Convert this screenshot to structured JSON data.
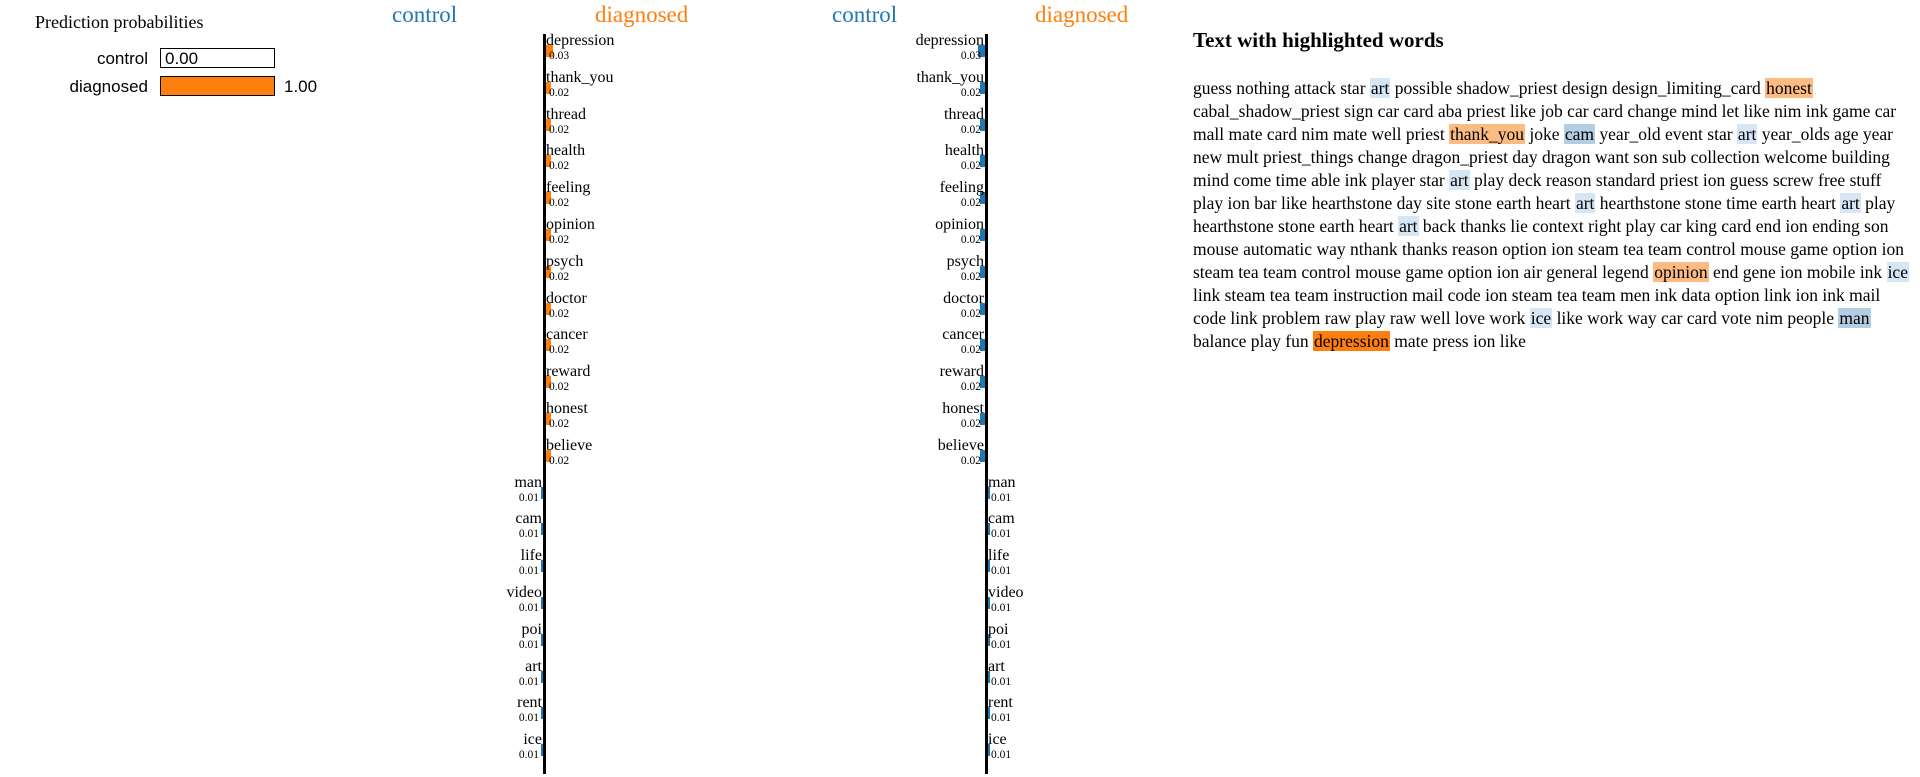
{
  "colors": {
    "control": "#1f77b4",
    "diagnosed": "#ff7f0e"
  },
  "prediction": {
    "title": "Prediction probabilities",
    "rows": [
      {
        "label": "control",
        "value": 0.0,
        "display": "0.00"
      },
      {
        "label": "diagnosed",
        "value": 1.0,
        "display": "1.00"
      }
    ]
  },
  "panels": [
    {
      "left_label": "control",
      "right_label": "diagnosed"
    },
    {
      "left_label": "control",
      "right_label": "diagnosed"
    }
  ],
  "chart_data": {
    "type": "bar",
    "title": "",
    "orientation": "horizontal",
    "series": [
      {
        "name": "diagnosed",
        "color": "#ff7f0e",
        "categories": [
          "depression",
          "thank_you",
          "thread",
          "health",
          "feeling",
          "opinion",
          "psych",
          "doctor",
          "cancer",
          "reward",
          "honest",
          "believe"
        ],
        "values": [
          0.03,
          0.02,
          0.02,
          0.02,
          0.02,
          0.02,
          0.02,
          0.02,
          0.02,
          0.02,
          0.02,
          0.02
        ],
        "labels": [
          "0.03",
          "0.02",
          "0.02",
          "0.02",
          "0.02",
          "0.02",
          "0.02",
          "0.02",
          "0.02",
          "0.02",
          "0.02",
          "0.02"
        ]
      },
      {
        "name": "control",
        "color": "#1f77b4",
        "categories": [
          "man",
          "cam",
          "life",
          "video",
          "poi",
          "art",
          "rent",
          "ice"
        ],
        "values": [
          0.01,
          0.01,
          0.01,
          0.01,
          0.01,
          0.01,
          0.01,
          0.01
        ],
        "labels": [
          "0.01",
          "0.01",
          "0.01",
          "0.01",
          "0.01",
          "0.01",
          "0.01",
          "0.01"
        ]
      }
    ]
  },
  "text_panel": {
    "title": "Text with highlighted words",
    "tokens": [
      {
        "t": "guess nothing attack star "
      },
      {
        "t": "art",
        "h": "c1"
      },
      {
        "t": " possible shadow_priest design design_limiting_card "
      },
      {
        "t": "honest",
        "h": "d2"
      },
      {
        "t": " cabal_shadow_priest sign car card aba priest like job car card change mind let like nim ink game car mall mate card nim mate well priest "
      },
      {
        "t": "thank_you",
        "h": "d2"
      },
      {
        "t": " joke "
      },
      {
        "t": "cam",
        "h": "c2"
      },
      {
        "t": " year_old event star "
      },
      {
        "t": "art",
        "h": "c1"
      },
      {
        "t": " year_olds age year new mult priest_things change dragon_priest day dragon want son sub collection welcome building mind come time able ink player star "
      },
      {
        "t": "art",
        "h": "c1"
      },
      {
        "t": " play deck reason standard priest ion guess screw free stuff play ion bar like hearthstone day site stone earth heart "
      },
      {
        "t": "art",
        "h": "c1"
      },
      {
        "t": " hearthstone stone time earth heart "
      },
      {
        "t": "art",
        "h": "c1"
      },
      {
        "t": " play hearthstone stone earth heart "
      },
      {
        "t": "art",
        "h": "c1"
      },
      {
        "t": " back thanks lie context right play car king card end ion ending son mouse automatic way nthank thanks reason option ion steam tea team control mouse game option ion steam tea team control mouse game option ion air general legend "
      },
      {
        "t": "opinion",
        "h": "d2"
      },
      {
        "t": " end gene ion mobile ink "
      },
      {
        "t": "ice",
        "h": "c1"
      },
      {
        "t": " link steam tea team instruction mail code ion steam tea team men ink data option link ion ink mail code link problem raw play raw well love work "
      },
      {
        "t": "ice",
        "h": "c1"
      },
      {
        "t": " like work way car card vote nim people "
      },
      {
        "t": "man",
        "h": "c2"
      },
      {
        "t": " balance play fun "
      },
      {
        "t": "depression",
        "h": "d3"
      },
      {
        "t": " mate press ion like"
      }
    ]
  }
}
